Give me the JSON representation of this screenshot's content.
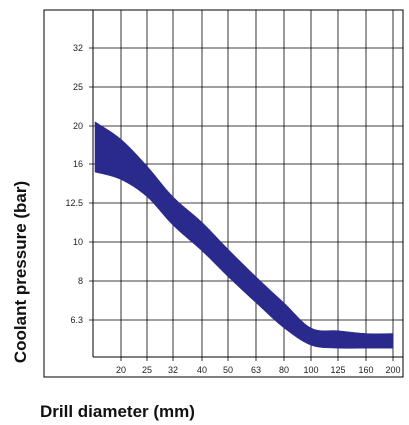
{
  "chart_data": {
    "type": "area",
    "title": "",
    "xlabel": "Drill diameter (mm)",
    "ylabel": "Coolant pressure (bar)",
    "x_tick_labels": [
      "20",
      "25",
      "32",
      "40",
      "50",
      "63",
      "80",
      "100",
      "125",
      "160",
      "200"
    ],
    "y_tick_labels": [
      "6.3",
      "8",
      "10",
      "12.5",
      "16",
      "20",
      "25",
      "32"
    ],
    "x_scale": "log",
    "y_scale": "log",
    "xlim": [
      16,
      200
    ],
    "ylim": [
      5,
      40
    ],
    "grid": true,
    "band": {
      "color": "#2a2a8c",
      "x": [
        16,
        20,
        25,
        32,
        40,
        50,
        63,
        80,
        100,
        125,
        160,
        200
      ],
      "upper": [
        20.5,
        18.5,
        15.8,
        13.0,
        11.2,
        9.6,
        8.2,
        7.0,
        6.0,
        5.9,
        5.8,
        5.8
      ],
      "lower": [
        15.2,
        14.5,
        13.0,
        11.0,
        9.5,
        8.2,
        7.0,
        6.0,
        5.4,
        5.3,
        5.3,
        5.3
      ]
    }
  }
}
